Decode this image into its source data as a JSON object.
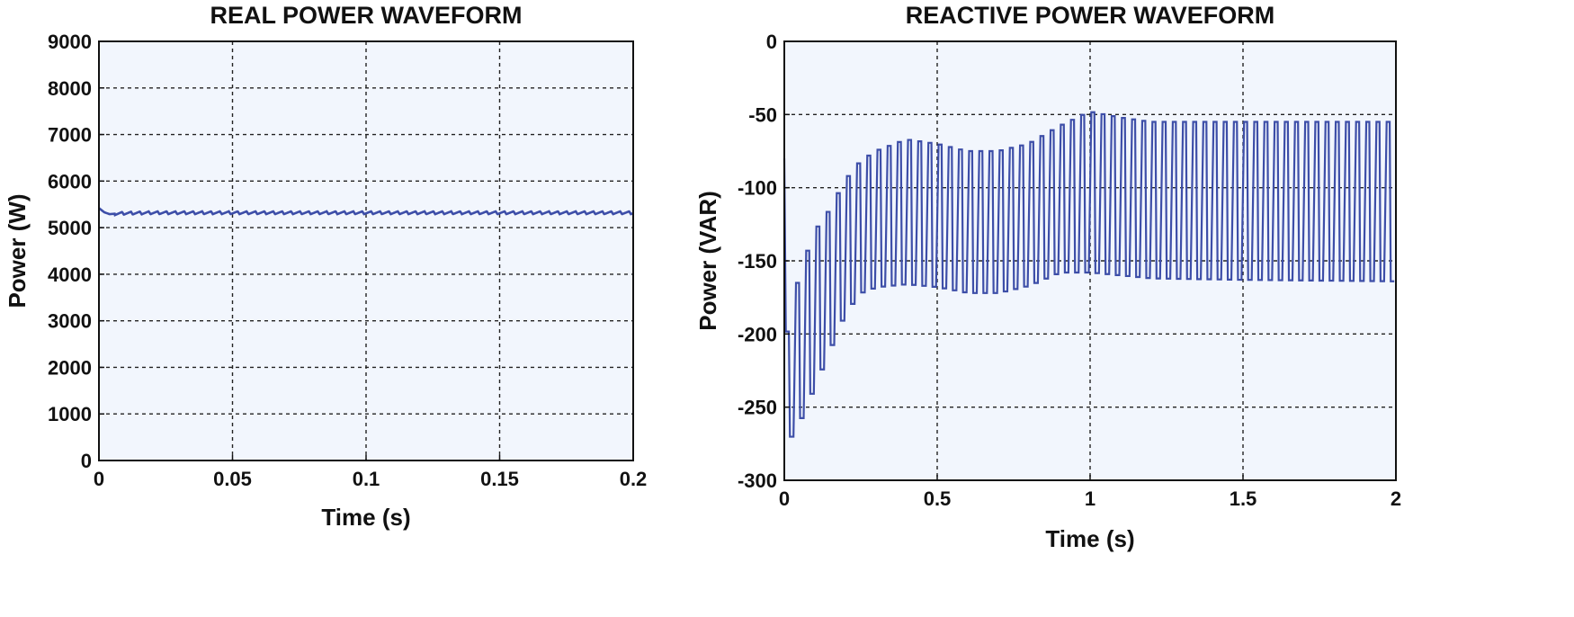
{
  "chart_data": [
    {
      "type": "line",
      "title": "REAL POWER WAVEFORM",
      "xlabel": "Time (s)",
      "ylabel": "Power (W)",
      "xlim": [
        0,
        0.2
      ],
      "ylim": [
        0,
        9000
      ],
      "xticks": [
        "0",
        "0.05",
        "0.1",
        "0.15",
        "0.2"
      ],
      "xtick_values": [
        0,
        0.05,
        0.1,
        0.15,
        0.2
      ],
      "yticks": [
        "0",
        "1000",
        "2000",
        "3000",
        "4000",
        "5000",
        "6000",
        "7000",
        "8000",
        "9000"
      ],
      "ytick_values": [
        0,
        1000,
        2000,
        3000,
        4000,
        5000,
        6000,
        7000,
        8000,
        9000
      ],
      "grid": true,
      "series": [
        {
          "x": [
            0,
            0.002,
            0.004,
            0.006,
            0.01,
            0.02,
            0.05,
            0.1,
            0.15,
            0.2
          ],
          "y": [
            5420,
            5330,
            5290,
            5300,
            5310,
            5320,
            5320,
            5320,
            5320,
            5320
          ],
          "ripple": {
            "amplitude": 60,
            "period": 0.00333,
            "start": 0.006
          }
        }
      ]
    },
    {
      "type": "line",
      "title": "REACTIVE POWER WAVEFORM",
      "xlabel": "Time (s)",
      "ylabel": "Power (VAR)",
      "xlim": [
        0,
        2
      ],
      "ylim": [
        -300,
        0
      ],
      "xticks": [
        "0",
        "0.5",
        "1",
        "1.5",
        "2"
      ],
      "xtick_values": [
        0,
        0.5,
        1,
        1.5,
        2
      ],
      "yticks": [
        "-300",
        "-250",
        "-200",
        "-150",
        "-100",
        "-50",
        "0"
      ],
      "ytick_values": [
        -300,
        -250,
        -200,
        -150,
        -100,
        -50,
        0
      ],
      "grid": true,
      "series": [
        {
          "envelope_x": [
            0,
            0.05,
            0.1,
            0.15,
            0.2,
            0.25,
            0.3,
            0.4,
            0.5,
            0.6,
            0.7,
            0.8,
            0.9,
            1.0,
            1.1,
            1.2,
            1.5,
            2.0
          ],
          "upper": [
            -210,
            -160,
            -130,
            -115,
            -95,
            -82,
            -75,
            -67,
            -70,
            -75,
            -75,
            -70,
            -58,
            -48,
            -52,
            -55,
            -55,
            -55
          ],
          "lower": [
            -278,
            -260,
            -235,
            -210,
            -185,
            -172,
            -168,
            -166,
            -168,
            -172,
            -172,
            -167,
            -158,
            -158,
            -160,
            -162,
            -163,
            -164
          ],
          "oscillation_period": 0.0333
        }
      ]
    }
  ],
  "colors": {
    "line": "#3d4ea8",
    "plot_bg": "#f2f6fd",
    "grid": "#222222",
    "axis": "#111111"
  }
}
